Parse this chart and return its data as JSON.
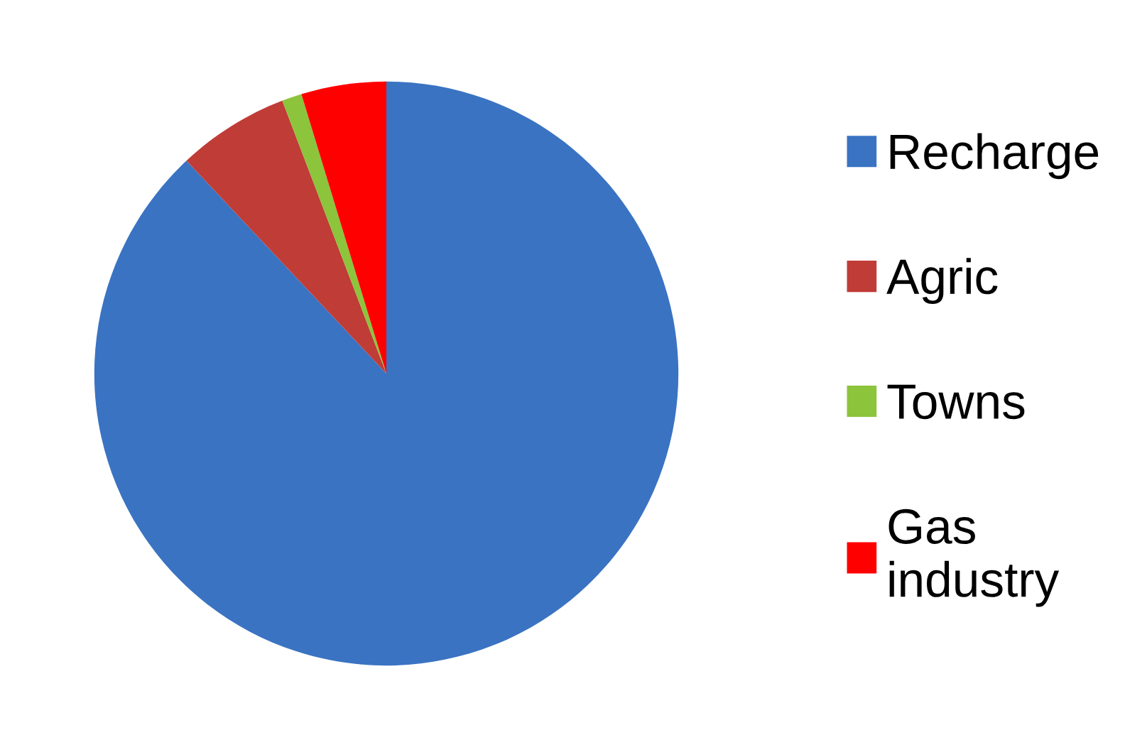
{
  "chart_data": {
    "type": "pie",
    "categories": [
      "Recharge",
      "Agric",
      "Towns",
      "Gas industry"
    ],
    "values": [
      88,
      6.2,
      1.1,
      4.7
    ],
    "colors": [
      "#3a73c2",
      "#c03c36",
      "#8cc43c",
      "#ff0000"
    ],
    "legend": "right"
  }
}
